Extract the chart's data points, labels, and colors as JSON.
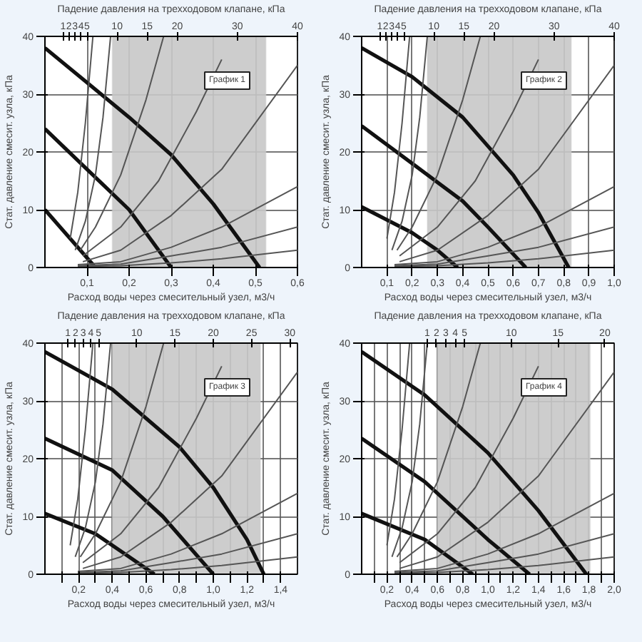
{
  "chart_data": [
    {
      "type": "line",
      "xlabel": "Расход воды через смесительный узел, м3/ч",
      "ylabel": "Стат. давление смесит. узла, кПа",
      "x2label": "Падение давления на трехходовом клапане, кПа",
      "annotations": [
        "График 1"
      ],
      "grid": true,
      "xlim": [
        0,
        0.6
      ],
      "ylim": [
        0,
        40
      ],
      "yticks": [
        0,
        10,
        20,
        30,
        40
      ],
      "xticks": [
        {
          "value": 0.1,
          "label": "0,1"
        },
        {
          "value": 0.2,
          "label": "0,2"
        },
        {
          "value": 0.3,
          "label": "0,3"
        },
        {
          "value": 0.4,
          "label": "0,4"
        },
        {
          "value": 0.5,
          "label": "0,5"
        },
        {
          "value": 0.6,
          "label": "0,6"
        }
      ],
      "x2lim": [
        -2,
        40
      ],
      "x2ticks": [
        1,
        2,
        3,
        4,
        5,
        10,
        15,
        20,
        30,
        40
      ],
      "bands": [
        {
          "axis": "x",
          "from": 0.16,
          "to": 0.525,
          "color": "#c8c8c8"
        }
      ],
      "series": [
        {
          "color": "#111111",
          "x": [
            0,
            0.1,
            0.2,
            0.3,
            0.4,
            0.51
          ],
          "values": [
            38,
            32,
            26,
            19.5,
            11,
            0
          ]
        },
        {
          "color": "#111111",
          "x": [
            0,
            0.1,
            0.2,
            0.3
          ],
          "values": [
            24,
            17,
            10,
            0
          ]
        },
        {
          "color": "#111111",
          "x": [
            0,
            0.06,
            0.12
          ],
          "values": [
            10,
            5,
            0
          ]
        },
        {
          "color": "#555555",
          "x": [
            0.06,
            0.078,
            0.096,
            0.114
          ],
          "values": [
            5,
            13,
            25,
            40
          ]
        },
        {
          "color": "#555555",
          "x": [
            0.072,
            0.096,
            0.12,
            0.138,
            0.156
          ],
          "values": [
            3,
            8,
            16,
            26,
            40
          ]
        },
        {
          "color": "#555555",
          "x": [
            0.084,
            0.12,
            0.18,
            0.24,
            0.282
          ],
          "values": [
            3,
            7,
            16,
            29,
            40
          ]
        },
        {
          "color": "#555555",
          "x": [
            0.09,
            0.18,
            0.27,
            0.36,
            0.42
          ],
          "values": [
            2,
            7,
            15,
            27,
            36
          ]
        },
        {
          "color": "#555555",
          "x": [
            0.09,
            0.18,
            0.3,
            0.42,
            0.6
          ],
          "values": [
            1,
            3,
            9,
            17,
            35
          ]
        },
        {
          "color": "#555555",
          "x": [
            0.078,
            0.18,
            0.3,
            0.42,
            0.6
          ],
          "values": [
            0.5,
            1,
            3.5,
            7,
            14
          ]
        },
        {
          "color": "#555555",
          "x": [
            0.078,
            0.18,
            0.3,
            0.42,
            0.6
          ],
          "values": [
            0.3,
            0.6,
            2,
            3.5,
            7
          ]
        },
        {
          "color": "#555555",
          "x": [
            0.078,
            0.18,
            0.3,
            0.42,
            0.6
          ],
          "values": [
            0.2,
            0.3,
            0.8,
            1.5,
            3
          ]
        }
      ]
    },
    {
      "type": "line",
      "xlabel": "Расход воды через смесительный узел, м3/ч",
      "ylabel": "Стат. давление смесит. узла, кПа",
      "x2label": "Падение давления на трехходовом клапане, кПа",
      "annotations": [
        "График 2"
      ],
      "grid": true,
      "xlim": [
        0,
        1.0
      ],
      "ylim": [
        0,
        40
      ],
      "yticks": [
        0,
        10,
        20,
        30,
        40
      ],
      "xticks": [
        {
          "value": 0.1,
          "label": "0,1"
        },
        {
          "value": 0.2,
          "label": "0,2"
        },
        {
          "value": 0.3,
          "label": "0,3"
        },
        {
          "value": 0.4,
          "label": "0,4"
        },
        {
          "value": 0.5,
          "label": "0,5"
        },
        {
          "value": 0.6,
          "label": "0,6"
        },
        {
          "value": 0.7,
          "label": "0,7"
        },
        {
          "value": 0.8,
          "label": "0,8"
        },
        {
          "value": 0.9,
          "label": "0,9"
        },
        {
          "value": 1.0,
          "label": "1,0"
        }
      ],
      "x2lim": [
        -2,
        40
      ],
      "x2ticks": [
        1,
        2,
        3,
        4,
        5,
        10,
        15,
        20,
        30,
        40
      ],
      "bands": [
        {
          "axis": "x",
          "from": 0.26,
          "to": 0.83,
          "color": "#c8c8c8"
        }
      ],
      "series": [
        {
          "color": "#111111",
          "x": [
            0,
            0.2,
            0.4,
            0.5,
            0.6,
            0.7,
            0.82
          ],
          "values": [
            38,
            33,
            26,
            21,
            16,
            9.5,
            0
          ]
        },
        {
          "color": "#111111",
          "x": [
            0,
            0.2,
            0.4,
            0.5,
            0.65
          ],
          "values": [
            24.5,
            18,
            11.5,
            7,
            0
          ]
        },
        {
          "color": "#111111",
          "x": [
            0,
            0.2,
            0.3,
            0.38
          ],
          "values": [
            10.5,
            6,
            3,
            0
          ]
        },
        {
          "color": "#555555",
          "x": [
            0.1,
            0.13,
            0.16,
            0.19
          ],
          "values": [
            5,
            13,
            25,
            40
          ]
        },
        {
          "color": "#555555",
          "x": [
            0.12,
            0.16,
            0.2,
            0.23,
            0.26
          ],
          "values": [
            3,
            8,
            16,
            26,
            40
          ]
        },
        {
          "color": "#555555",
          "x": [
            0.14,
            0.2,
            0.3,
            0.4,
            0.47
          ],
          "values": [
            3,
            7,
            16,
            29,
            40
          ]
        },
        {
          "color": "#555555",
          "x": [
            0.15,
            0.3,
            0.45,
            0.6,
            0.7
          ],
          "values": [
            2,
            7,
            15,
            27,
            36
          ]
        },
        {
          "color": "#555555",
          "x": [
            0.15,
            0.3,
            0.5,
            0.7,
            1.0
          ],
          "values": [
            1,
            3,
            9,
            17,
            35
          ]
        },
        {
          "color": "#555555",
          "x": [
            0.13,
            0.3,
            0.5,
            0.7,
            1.0
          ],
          "values": [
            0.5,
            1,
            3.5,
            7,
            14
          ]
        },
        {
          "color": "#555555",
          "x": [
            0.13,
            0.3,
            0.5,
            0.7,
            1.0
          ],
          "values": [
            0.3,
            0.6,
            2,
            3.5,
            7
          ]
        },
        {
          "color": "#555555",
          "x": [
            0.13,
            0.3,
            0.5,
            0.7,
            1.0
          ],
          "values": [
            0.2,
            0.3,
            0.8,
            1.5,
            3
          ]
        }
      ]
    },
    {
      "type": "line",
      "xlabel": "Расход воды через смесительный узел, м3/ч",
      "ylabel": "Стат. давление смесит. узла, кПа",
      "x2label": "Падение давления на трехходовом клапане, кПа",
      "annotations": [
        "График 3"
      ],
      "grid": true,
      "xlim": [
        0,
        1.5
      ],
      "ylim": [
        0,
        40
      ],
      "yticks": [
        0,
        10,
        20,
        30,
        40
      ],
      "xticks": [
        {
          "value": 0.1,
          "label": null
        },
        {
          "value": 0.2,
          "label": "0,2"
        },
        {
          "value": 0.3,
          "label": null
        },
        {
          "value": 0.4,
          "label": "0,4"
        },
        {
          "value": 0.5,
          "label": null
        },
        {
          "value": 0.6,
          "label": "0,6"
        },
        {
          "value": 0.7,
          "label": null
        },
        {
          "value": 0.8,
          "label": "0,8"
        },
        {
          "value": 0.9,
          "label": null
        },
        {
          "value": 1.0,
          "label": "1,0"
        },
        {
          "value": 1.1,
          "label": null
        },
        {
          "value": 1.2,
          "label": "1,2"
        },
        {
          "value": 1.3,
          "label": null
        },
        {
          "value": 1.4,
          "label": "1,4"
        }
      ],
      "x2lim": [
        -2,
        31
      ],
      "x2ticks": [
        1,
        2,
        3,
        4,
        5,
        10,
        15,
        20,
        25,
        30
      ],
      "bands": [
        {
          "axis": "x",
          "from": 0.4,
          "to": 1.28,
          "color": "#c8c8c8"
        }
      ],
      "series": [
        {
          "color": "#111111",
          "x": [
            0,
            0.4,
            0.8,
            1.0,
            1.2,
            1.3
          ],
          "values": [
            38.5,
            32,
            22,
            15,
            6,
            0
          ]
        },
        {
          "color": "#111111",
          "x": [
            0,
            0.4,
            0.7,
            1.0
          ],
          "values": [
            23.5,
            18,
            10,
            0
          ]
        },
        {
          "color": "#111111",
          "x": [
            0,
            0.3,
            0.5,
            0.65
          ],
          "values": [
            10.5,
            7,
            3,
            0
          ]
        },
        {
          "color": "#555555",
          "x": [
            0.15,
            0.195,
            0.24,
            0.285
          ],
          "values": [
            5,
            13,
            25,
            40
          ]
        },
        {
          "color": "#555555",
          "x": [
            0.18,
            0.24,
            0.3,
            0.345,
            0.39
          ],
          "values": [
            3,
            8,
            16,
            26,
            40
          ]
        },
        {
          "color": "#555555",
          "x": [
            0.21,
            0.3,
            0.45,
            0.6,
            0.705
          ],
          "values": [
            3,
            7,
            16,
            29,
            40
          ]
        },
        {
          "color": "#555555",
          "x": [
            0.225,
            0.45,
            0.675,
            0.9,
            1.05
          ],
          "values": [
            2,
            7,
            15,
            27,
            36
          ]
        },
        {
          "color": "#555555",
          "x": [
            0.225,
            0.45,
            0.75,
            1.05,
            1.5
          ],
          "values": [
            1,
            3,
            9,
            17,
            35
          ]
        },
        {
          "color": "#555555",
          "x": [
            0.195,
            0.45,
            0.75,
            1.05,
            1.5
          ],
          "values": [
            0.5,
            1,
            3.5,
            7,
            14
          ]
        },
        {
          "color": "#555555",
          "x": [
            0.195,
            0.45,
            0.75,
            1.05,
            1.5
          ],
          "values": [
            0.3,
            0.6,
            2,
            3.5,
            7
          ]
        },
        {
          "color": "#555555",
          "x": [
            0.195,
            0.45,
            0.75,
            1.05,
            1.5
          ],
          "values": [
            0.2,
            0.3,
            0.8,
            1.5,
            3
          ]
        }
      ]
    },
    {
      "type": "line",
      "xlabel": "Расход воды через смесительный узел, м3/ч",
      "ylabel": "Стат. давление смесит. узла, кПа",
      "x2label": "Падение давления на трехходовом клапане, кПа",
      "annotations": [
        "График 4"
      ],
      "grid": true,
      "xlim": [
        0,
        2.0
      ],
      "ylim": [
        0,
        40
      ],
      "yticks": [
        0,
        10,
        20,
        30,
        40
      ],
      "xticks": [
        {
          "value": 0.1,
          "label": null
        },
        {
          "value": 0.2,
          "label": "0,2"
        },
        {
          "value": 0.3,
          "label": null
        },
        {
          "value": 0.4,
          "label": "0,4"
        },
        {
          "value": 0.5,
          "label": null
        },
        {
          "value": 0.6,
          "label": "0,6"
        },
        {
          "value": 0.7,
          "label": null
        },
        {
          "value": 0.8,
          "label": "0,8"
        },
        {
          "value": 0.9,
          "label": null
        },
        {
          "value": 1.0,
          "label": "1,0"
        },
        {
          "value": 1.1,
          "label": null
        },
        {
          "value": 1.2,
          "label": "1,2"
        },
        {
          "value": 1.3,
          "label": null
        },
        {
          "value": 1.4,
          "label": "1,4"
        },
        {
          "value": 1.5,
          "label": null
        },
        {
          "value": 1.6,
          "label": "1,6"
        },
        {
          "value": 1.7,
          "label": null
        },
        {
          "value": 1.8,
          "label": "1,8"
        },
        {
          "value": 1.9,
          "label": null
        },
        {
          "value": 2.0,
          "label": "2,0"
        }
      ],
      "x2lim": [
        -6,
        21
      ],
      "x2ticks": [
        1,
        2,
        3,
        4,
        5,
        10,
        15,
        20
      ],
      "bands": [
        {
          "axis": "x",
          "from": 0.6,
          "to": 1.81,
          "color": "#c8c8c8"
        }
      ],
      "series": [
        {
          "color": "#111111",
          "x": [
            0,
            0.5,
            1.0,
            1.4,
            1.78
          ],
          "values": [
            38.5,
            31,
            21,
            11,
            0
          ]
        },
        {
          "color": "#111111",
          "x": [
            0,
            0.5,
            1.0,
            1.33
          ],
          "values": [
            23.5,
            16,
            6,
            0
          ]
        },
        {
          "color": "#111111",
          "x": [
            0,
            0.5,
            0.88
          ],
          "values": [
            10.5,
            6,
            0
          ]
        },
        {
          "color": "#555555",
          "x": [
            0.2,
            0.26,
            0.32,
            0.38
          ],
          "values": [
            5,
            13,
            25,
            40
          ]
        },
        {
          "color": "#555555",
          "x": [
            0.24,
            0.32,
            0.4,
            0.46,
            0.52
          ],
          "values": [
            3,
            8,
            16,
            26,
            40
          ]
        },
        {
          "color": "#555555",
          "x": [
            0.28,
            0.4,
            0.6,
            0.8,
            0.94
          ],
          "values": [
            3,
            7,
            16,
            29,
            40
          ]
        },
        {
          "color": "#555555",
          "x": [
            0.3,
            0.6,
            0.9,
            1.2,
            1.4
          ],
          "values": [
            2,
            7,
            15,
            27,
            36
          ]
        },
        {
          "color": "#555555",
          "x": [
            0.3,
            0.6,
            1.0,
            1.4,
            2.0
          ],
          "values": [
            1,
            3,
            9,
            17,
            35
          ]
        },
        {
          "color": "#555555",
          "x": [
            0.26,
            0.6,
            1.0,
            1.4,
            2.0
          ],
          "values": [
            0.5,
            1,
            3.5,
            7,
            14
          ]
        },
        {
          "color": "#555555",
          "x": [
            0.26,
            0.6,
            1.0,
            1.4,
            2.0
          ],
          "values": [
            0.3,
            0.6,
            2,
            3.5,
            7
          ]
        },
        {
          "color": "#555555",
          "x": [
            0.26,
            0.6,
            1.0,
            1.4,
            2.0
          ],
          "values": [
            0.2,
            0.3,
            0.8,
            1.5,
            3
          ]
        }
      ]
    }
  ]
}
